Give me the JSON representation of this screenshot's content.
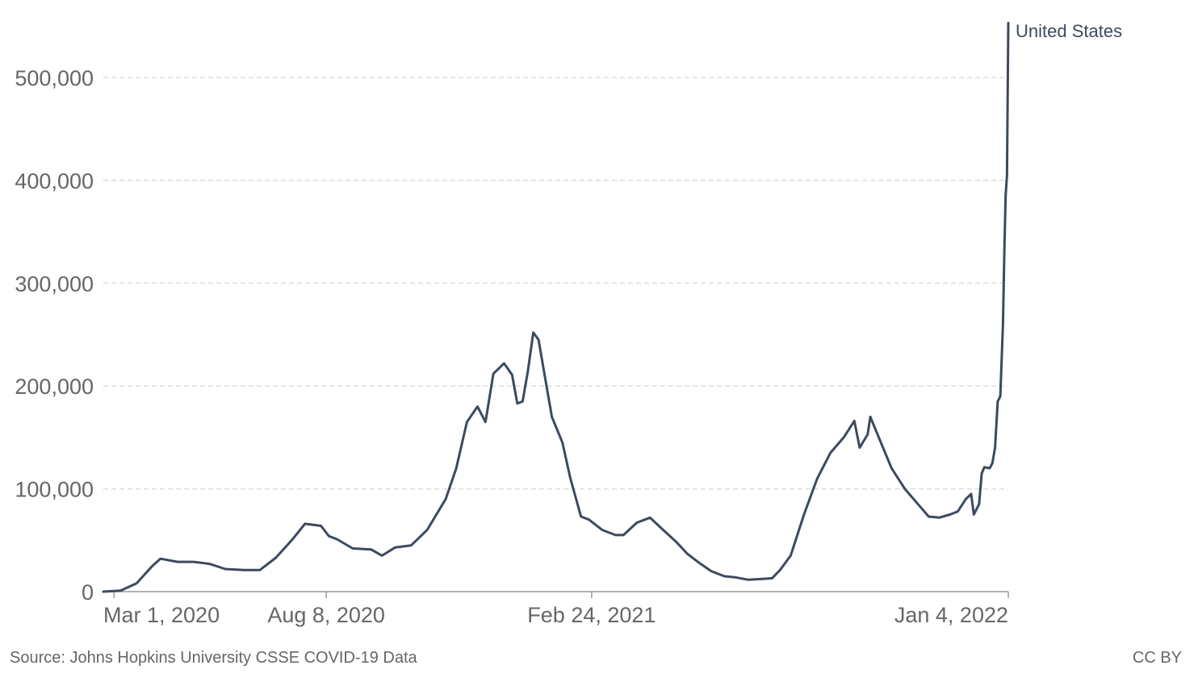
{
  "footer": {
    "source": "Source: Johns Hopkins University CSSE COVID-19 Data",
    "license": "CC BY"
  },
  "chart_data": {
    "type": "line",
    "title": "",
    "xlabel": "",
    "ylabel": "",
    "ylim": [
      0,
      500000
    ],
    "xlim": [
      "2020-02-22",
      "2022-01-04"
    ],
    "grid": true,
    "yticks": [
      0,
      100000,
      200000,
      300000,
      400000,
      500000
    ],
    "ytick_labels": [
      "0",
      "100,000",
      "200,000",
      "300,000",
      "400,000",
      "500,000"
    ],
    "xticks": [
      "2020-03-01",
      "2020-08-08",
      "2021-02-24",
      "2022-01-04"
    ],
    "xtick_labels": [
      "Mar 1, 2020",
      "Aug 8, 2020",
      "Feb 24, 2021",
      "Jan 4, 2022"
    ],
    "colors": {
      "series": "#3c4a5e",
      "grid": "#dddddd",
      "axis": "#999999",
      "text": "#666666"
    },
    "series": [
      {
        "name": "United States",
        "points": [
          [
            "2020-02-22",
            0
          ],
          [
            "2020-03-06",
            1000
          ],
          [
            "2020-03-18",
            8000
          ],
          [
            "2020-03-30",
            25000
          ],
          [
            "2020-04-05",
            32000
          ],
          [
            "2020-04-18",
            29000
          ],
          [
            "2020-04-30",
            29000
          ],
          [
            "2020-05-12",
            27000
          ],
          [
            "2020-05-24",
            22000
          ],
          [
            "2020-06-07",
            21000
          ],
          [
            "2020-06-19",
            21000
          ],
          [
            "2020-07-01",
            33000
          ],
          [
            "2020-07-13",
            50000
          ],
          [
            "2020-07-23",
            66000
          ],
          [
            "2020-08-04",
            64000
          ],
          [
            "2020-08-10",
            54000
          ],
          [
            "2020-08-16",
            51000
          ],
          [
            "2020-08-28",
            42000
          ],
          [
            "2020-09-11",
            41000
          ],
          [
            "2020-09-19",
            35000
          ],
          [
            "2020-09-29",
            43000
          ],
          [
            "2020-10-11",
            45000
          ],
          [
            "2020-10-23",
            60000
          ],
          [
            "2020-11-06",
            90000
          ],
          [
            "2020-11-14",
            120000
          ],
          [
            "2020-11-22",
            165000
          ],
          [
            "2020-11-30",
            180000
          ],
          [
            "2020-12-06",
            165000
          ],
          [
            "2020-12-12",
            212000
          ],
          [
            "2020-12-20",
            222000
          ],
          [
            "2020-12-26",
            211000
          ],
          [
            "2020-12-30",
            183000
          ],
          [
            "2021-01-03",
            185000
          ],
          [
            "2021-01-07",
            215000
          ],
          [
            "2021-01-11",
            252000
          ],
          [
            "2021-01-15",
            245000
          ],
          [
            "2021-01-25",
            170000
          ],
          [
            "2021-02-02",
            145000
          ],
          [
            "2021-02-08",
            110000
          ],
          [
            "2021-02-16",
            73000
          ],
          [
            "2021-02-22",
            70000
          ],
          [
            "2021-03-04",
            60000
          ],
          [
            "2021-03-14",
            55000
          ],
          [
            "2021-03-20",
            55000
          ],
          [
            "2021-03-30",
            67000
          ],
          [
            "2021-04-09",
            72000
          ],
          [
            "2021-04-19",
            60000
          ],
          [
            "2021-04-29",
            48000
          ],
          [
            "2021-05-07",
            37000
          ],
          [
            "2021-05-15",
            29000
          ],
          [
            "2021-05-25",
            20000
          ],
          [
            "2021-06-04",
            15000
          ],
          [
            "2021-06-12",
            14000
          ],
          [
            "2021-06-22",
            11500
          ],
          [
            "2021-07-04",
            12500
          ],
          [
            "2021-07-10",
            13000
          ],
          [
            "2021-07-16",
            21000
          ],
          [
            "2021-07-24",
            35000
          ],
          [
            "2021-08-03",
            75000
          ],
          [
            "2021-08-13",
            110000
          ],
          [
            "2021-08-23",
            135000
          ],
          [
            "2021-09-02",
            150000
          ],
          [
            "2021-09-10",
            166000
          ],
          [
            "2021-09-14",
            140000
          ],
          [
            "2021-09-20",
            153000
          ],
          [
            "2021-09-22",
            170000
          ],
          [
            "2021-09-30",
            145000
          ],
          [
            "2021-10-08",
            120000
          ],
          [
            "2021-10-18",
            100000
          ],
          [
            "2021-10-28",
            85000
          ],
          [
            "2021-11-05",
            73000
          ],
          [
            "2021-11-13",
            72000
          ],
          [
            "2021-11-21",
            75000
          ],
          [
            "2021-11-27",
            78000
          ],
          [
            "2021-12-03",
            90000
          ],
          [
            "2021-12-07",
            95000
          ],
          [
            "2021-12-09",
            75000
          ],
          [
            "2021-12-13",
            85000
          ],
          [
            "2021-12-15",
            115000
          ],
          [
            "2021-12-17",
            121000
          ],
          [
            "2021-12-21",
            120000
          ],
          [
            "2021-12-23",
            125000
          ],
          [
            "2021-12-25",
            140000
          ],
          [
            "2021-12-27",
            185000
          ],
          [
            "2021-12-29",
            190000
          ],
          [
            "2021-12-31",
            260000
          ],
          [
            "2022-01-01",
            330000
          ],
          [
            "2022-01-02",
            385000
          ],
          [
            "2022-01-03",
            405000
          ],
          [
            "2022-01-04",
            553000
          ]
        ]
      }
    ]
  }
}
